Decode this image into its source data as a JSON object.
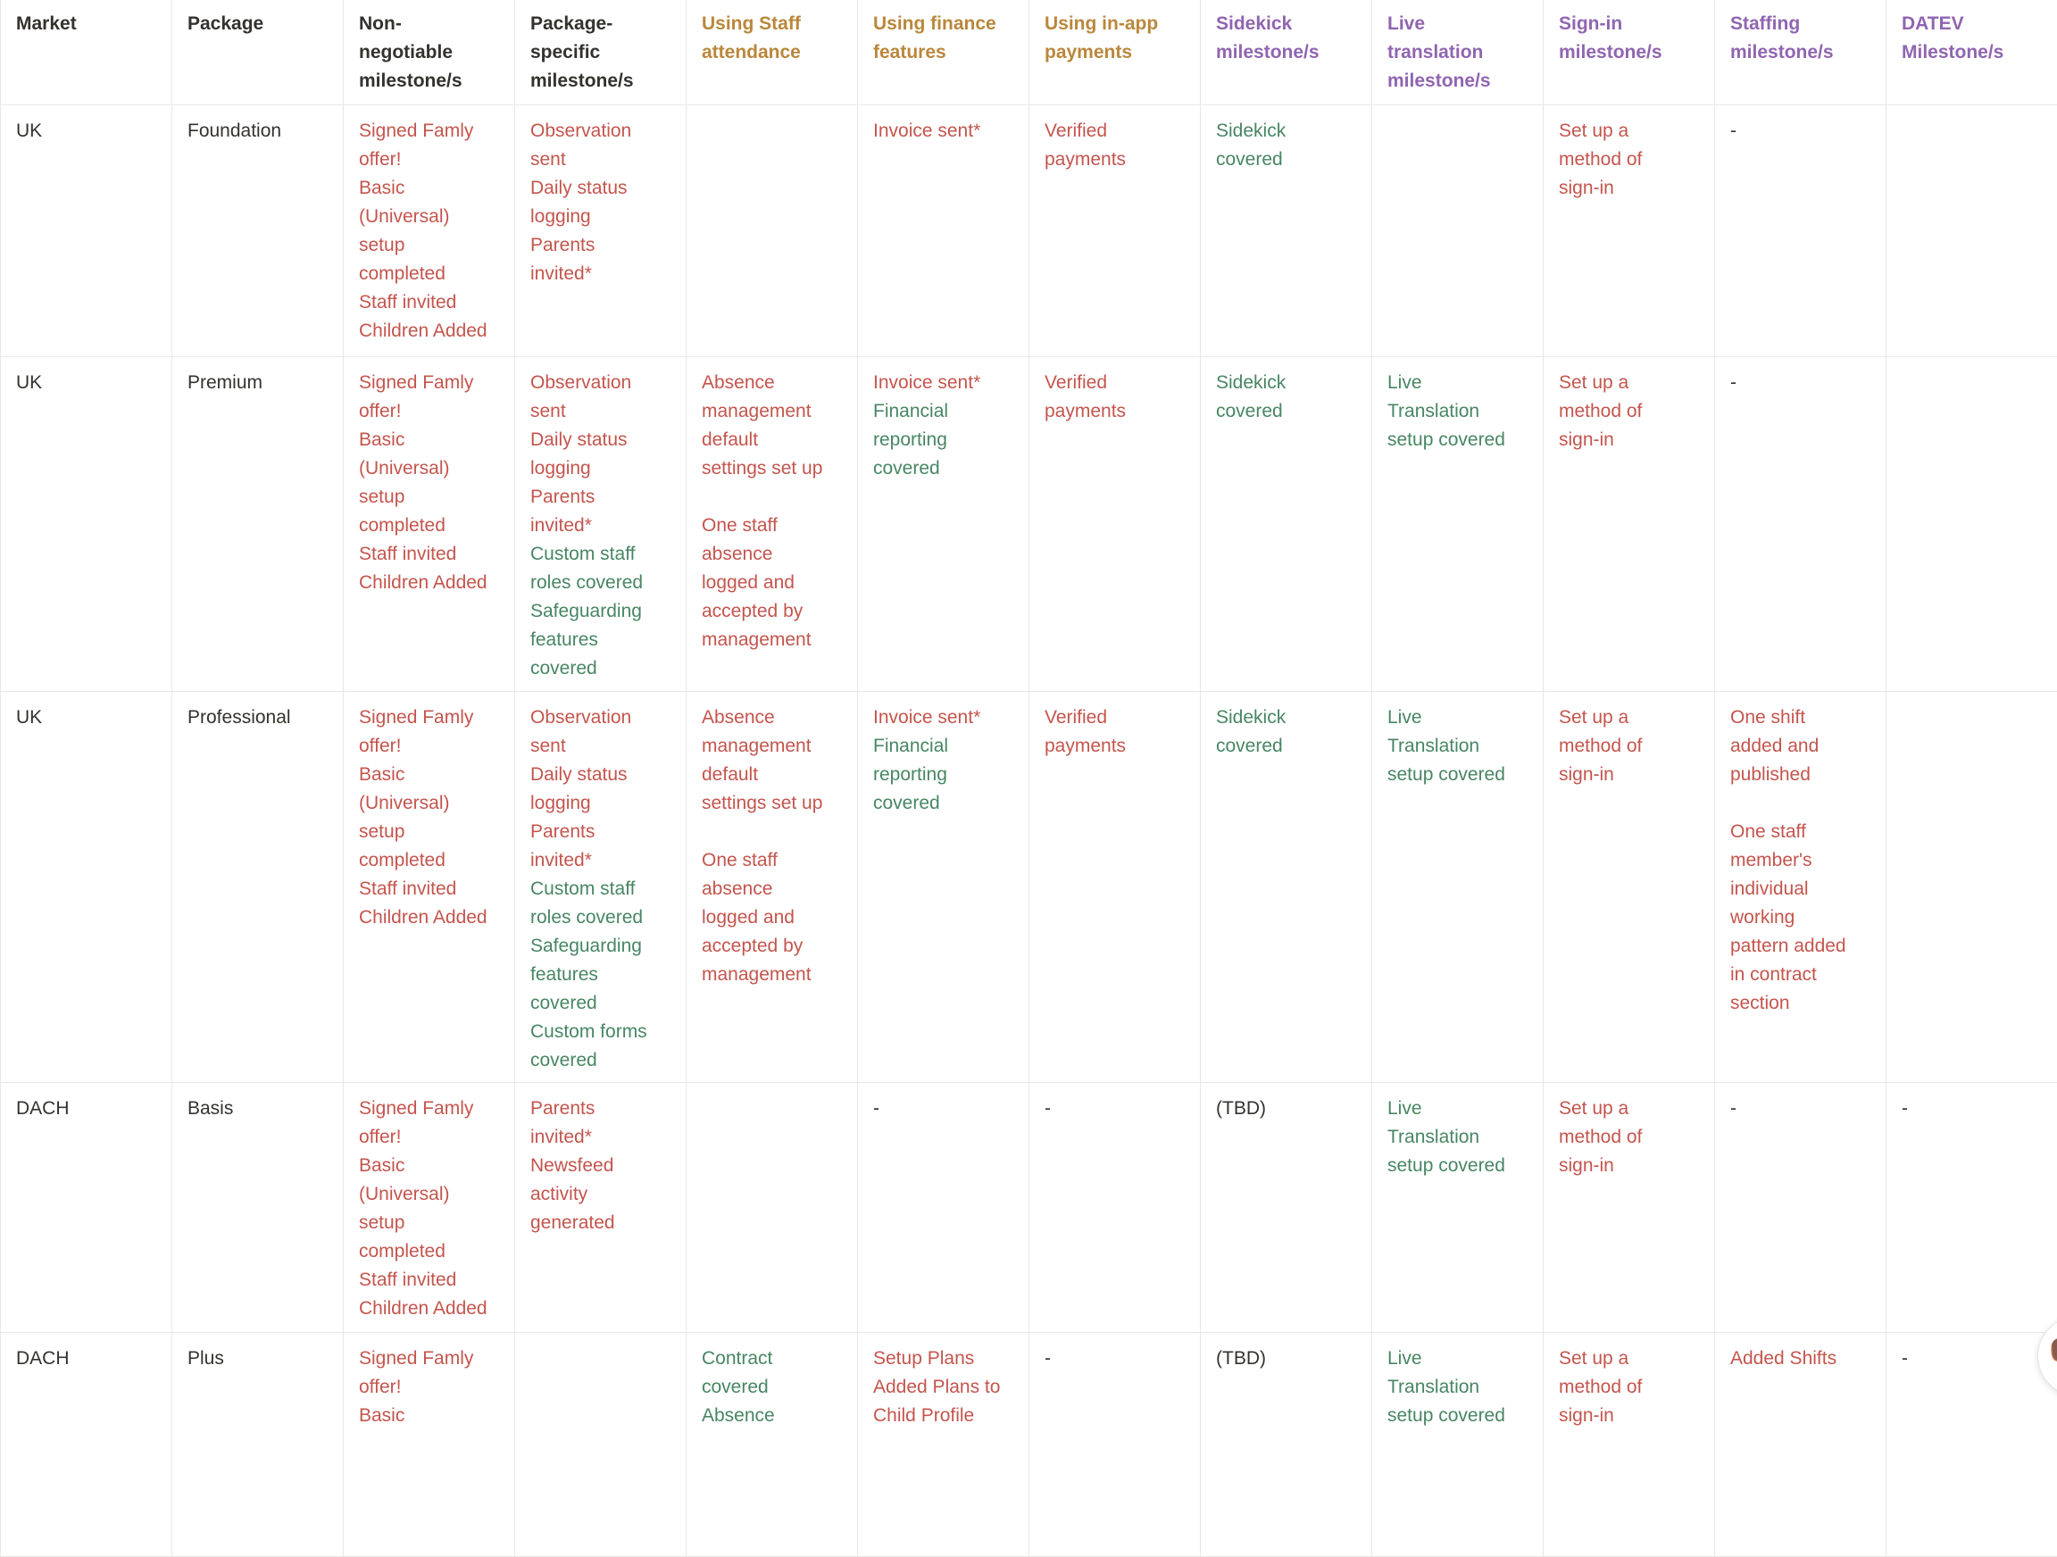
{
  "colors": {
    "red": "#C4554D",
    "green": "#478663",
    "gold": "#BA873B",
    "purple": "#9065B0",
    "dark": "#34322E",
    "grid_line": "#e8e8e6",
    "background": "#ffffff"
  },
  "table": {
    "columns": [
      {
        "key": "market",
        "label": "Market",
        "label_lines": [
          "Market"
        ],
        "color": "dark"
      },
      {
        "key": "package",
        "label": "Package",
        "label_lines": [
          "Package"
        ],
        "color": "dark"
      },
      {
        "key": "non_negotiable",
        "label": "Non-negotiable milestone/s",
        "label_lines": [
          "Non-",
          "negotiable",
          "milestone/s"
        ],
        "color": "dark"
      },
      {
        "key": "package_specific",
        "label": "Package-specific milestone/s",
        "label_lines": [
          "Package-",
          "specific",
          "milestone/s"
        ],
        "color": "dark"
      },
      {
        "key": "staff_attendance",
        "label": "Using Staff attendance",
        "label_lines": [
          "Using Staff",
          "attendance"
        ],
        "color": "gold"
      },
      {
        "key": "finance",
        "label": "Using finance features",
        "label_lines": [
          "Using finance",
          "features"
        ],
        "color": "gold"
      },
      {
        "key": "in_app",
        "label": "Using in-app payments",
        "label_lines": [
          "Using in-app",
          "payments"
        ],
        "color": "gold"
      },
      {
        "key": "sidekick",
        "label": "Sidekick milestone/s",
        "label_lines": [
          "Sidekick",
          "milestone/s"
        ],
        "color": "purple"
      },
      {
        "key": "live_translation",
        "label": "Live translation milestone/s",
        "label_lines": [
          "Live",
          "translation",
          "milestone/s"
        ],
        "color": "purple"
      },
      {
        "key": "sign_in",
        "label": "Sign-in milestone/s",
        "label_lines": [
          "Sign-in",
          "milestone/s"
        ],
        "color": "purple"
      },
      {
        "key": "staffing",
        "label": "Staffing milestone/s",
        "label_lines": [
          "Staffing",
          "milestone/s"
        ],
        "color": "purple"
      },
      {
        "key": "datev",
        "label": "DATEV Milestone/s",
        "label_lines": [
          "DATEV",
          "Milestone/s"
        ],
        "color": "purple"
      }
    ],
    "rows": [
      {
        "cells": {
          "market": [
            {
              "color": "dark",
              "lines": [
                "UK"
              ]
            }
          ],
          "package": [
            {
              "color": "dark",
              "lines": [
                "Foundation"
              ]
            }
          ],
          "non_negotiable": [
            {
              "color": "red",
              "lines": [
                "Signed Famly",
                "offer!",
                "Basic",
                "(Universal)",
                "setup",
                "completed",
                "Staff invited",
                "Children Added"
              ]
            }
          ],
          "package_specific": [
            {
              "color": "red",
              "lines": [
                "Observation",
                "sent",
                "Daily status",
                "logging",
                "Parents",
                "invited*"
              ]
            }
          ],
          "staff_attendance": [],
          "finance": [
            {
              "color": "red",
              "lines": [
                "Invoice sent*"
              ]
            }
          ],
          "in_app": [
            {
              "color": "red",
              "lines": [
                "Verified",
                "payments"
              ]
            }
          ],
          "sidekick": [
            {
              "color": "green",
              "lines": [
                "Sidekick",
                "covered"
              ]
            }
          ],
          "live_translation": [],
          "sign_in": [
            {
              "color": "red",
              "lines": [
                "Set up a",
                "method of",
                "sign-in"
              ]
            }
          ],
          "staffing": [
            {
              "color": "dark",
              "lines": [
                "-"
              ]
            }
          ],
          "datev": []
        }
      },
      {
        "cells": {
          "market": [
            {
              "color": "dark",
              "lines": [
                "UK"
              ]
            }
          ],
          "package": [
            {
              "color": "dark",
              "lines": [
                "Premium"
              ]
            }
          ],
          "non_negotiable": [
            {
              "color": "red",
              "lines": [
                "Signed Famly",
                "offer!",
                "Basic",
                "(Universal)",
                "setup",
                "completed",
                "Staff invited",
                "Children Added"
              ]
            }
          ],
          "package_specific": [
            {
              "color": "red",
              "lines": [
                "Observation",
                "sent",
                "Daily status",
                "logging",
                "Parents",
                "invited*"
              ]
            },
            {
              "color": "green",
              "lines": [
                "Custom staff",
                "roles covered",
                "Safeguarding",
                "features",
                "covered"
              ]
            }
          ],
          "staff_attendance": [
            {
              "color": "red",
              "lines": [
                "Absence",
                "management",
                "default",
                "settings set up",
                "",
                "One staff",
                "absence",
                "logged and",
                "accepted by",
                "management"
              ]
            }
          ],
          "finance": [
            {
              "color": "red",
              "lines": [
                "Invoice sent*"
              ]
            },
            {
              "color": "green",
              "lines": [
                "Financial",
                "reporting",
                "covered"
              ]
            }
          ],
          "in_app": [
            {
              "color": "red",
              "lines": [
                "Verified",
                "payments"
              ]
            }
          ],
          "sidekick": [
            {
              "color": "green",
              "lines": [
                "Sidekick",
                "covered"
              ]
            }
          ],
          "live_translation": [
            {
              "color": "green",
              "lines": [
                "Live",
                "Translation",
                "setup covered"
              ]
            }
          ],
          "sign_in": [
            {
              "color": "red",
              "lines": [
                "Set up a",
                "method of",
                "sign-in"
              ]
            }
          ],
          "staffing": [
            {
              "color": "dark",
              "lines": [
                "-"
              ]
            }
          ],
          "datev": []
        }
      },
      {
        "cells": {
          "market": [
            {
              "color": "dark",
              "lines": [
                "UK"
              ]
            }
          ],
          "package": [
            {
              "color": "dark",
              "lines": [
                "Professional"
              ]
            }
          ],
          "non_negotiable": [
            {
              "color": "red",
              "lines": [
                "Signed Famly",
                "offer!",
                "Basic",
                "(Universal)",
                "setup",
                "completed",
                "Staff invited",
                "Children Added"
              ]
            }
          ],
          "package_specific": [
            {
              "color": "red",
              "lines": [
                "Observation",
                "sent",
                "Daily status",
                "logging",
                "Parents",
                "invited*"
              ]
            },
            {
              "color": "green",
              "lines": [
                "Custom staff",
                "roles covered",
                "Safeguarding",
                "features",
                "covered",
                "Custom forms",
                "covered"
              ]
            }
          ],
          "staff_attendance": [
            {
              "color": "red",
              "lines": [
                "Absence",
                "management",
                "default",
                "settings set up",
                "",
                "One staff",
                "absence",
                "logged and",
                "accepted by",
                "management"
              ]
            }
          ],
          "finance": [
            {
              "color": "red",
              "lines": [
                "Invoice sent*"
              ]
            },
            {
              "color": "green",
              "lines": [
                "Financial",
                "reporting",
                "covered"
              ]
            }
          ],
          "in_app": [
            {
              "color": "red",
              "lines": [
                "Verified",
                "payments"
              ]
            }
          ],
          "sidekick": [
            {
              "color": "green",
              "lines": [
                "Sidekick",
                "covered"
              ]
            }
          ],
          "live_translation": [
            {
              "color": "green",
              "lines": [
                "Live",
                "Translation",
                "setup covered"
              ]
            }
          ],
          "sign_in": [
            {
              "color": "red",
              "lines": [
                "Set up a",
                "method of",
                "sign-in"
              ]
            }
          ],
          "staffing": [
            {
              "color": "red",
              "lines": [
                "One shift",
                "added and",
                "published",
                "",
                "One staff",
                "member's",
                "individual",
                "working",
                "pattern added",
                "in contract",
                "section"
              ]
            }
          ],
          "datev": []
        }
      },
      {
        "cells": {
          "market": [
            {
              "color": "dark",
              "lines": [
                "DACH"
              ]
            }
          ],
          "package": [
            {
              "color": "dark",
              "lines": [
                "Basis"
              ]
            }
          ],
          "non_negotiable": [
            {
              "color": "red",
              "lines": [
                "Signed Famly",
                "offer!",
                "Basic",
                "(Universal)",
                "setup",
                "completed",
                "Staff invited",
                "Children Added"
              ]
            }
          ],
          "package_specific": [
            {
              "color": "red",
              "lines": [
                "Parents",
                "invited*",
                "Newsfeed",
                "activity",
                "generated"
              ]
            }
          ],
          "staff_attendance": [],
          "finance": [
            {
              "color": "dark",
              "lines": [
                "-"
              ]
            }
          ],
          "in_app": [
            {
              "color": "dark",
              "lines": [
                "-"
              ]
            }
          ],
          "sidekick": [
            {
              "color": "dark",
              "lines": [
                "(TBD)"
              ]
            }
          ],
          "live_translation": [
            {
              "color": "green",
              "lines": [
                "Live",
                "Translation",
                "setup covered"
              ]
            }
          ],
          "sign_in": [
            {
              "color": "red",
              "lines": [
                "Set up a",
                "method of",
                "sign-in"
              ]
            }
          ],
          "staffing": [
            {
              "color": "dark",
              "lines": [
                "-"
              ]
            }
          ],
          "datev": [
            {
              "color": "dark",
              "lines": [
                "-"
              ]
            }
          ]
        }
      },
      {
        "cells": {
          "market": [
            {
              "color": "dark",
              "lines": [
                "DACH"
              ]
            }
          ],
          "package": [
            {
              "color": "dark",
              "lines": [
                "Plus"
              ]
            }
          ],
          "non_negotiable": [
            {
              "color": "red",
              "lines": [
                "Signed Famly",
                "offer!",
                "Basic"
              ]
            }
          ],
          "package_specific": [],
          "staff_attendance": [
            {
              "color": "green",
              "lines": [
                "Contract",
                "covered",
                "Absence"
              ]
            }
          ],
          "finance": [
            {
              "color": "red",
              "lines": [
                "Setup Plans",
                "Added Plans to",
                "Child Profile"
              ]
            }
          ],
          "in_app": [
            {
              "color": "dark",
              "lines": [
                "-"
              ]
            }
          ],
          "sidekick": [
            {
              "color": "dark",
              "lines": [
                "(TBD)"
              ]
            }
          ],
          "live_translation": [
            {
              "color": "green",
              "lines": [
                "Live",
                "Translation",
                "setup covered"
              ]
            }
          ],
          "sign_in": [
            {
              "color": "red",
              "lines": [
                "Set up a",
                "method of",
                "sign-in"
              ]
            }
          ],
          "staffing": [
            {
              "color": "red",
              "lines": [
                "Added Shifts"
              ]
            }
          ],
          "datev": [
            {
              "color": "dark",
              "lines": [
                "-"
              ]
            }
          ]
        }
      }
    ]
  },
  "floating_button": {
    "icon": "dog-mascot-icon",
    "emoji": "🐶"
  }
}
